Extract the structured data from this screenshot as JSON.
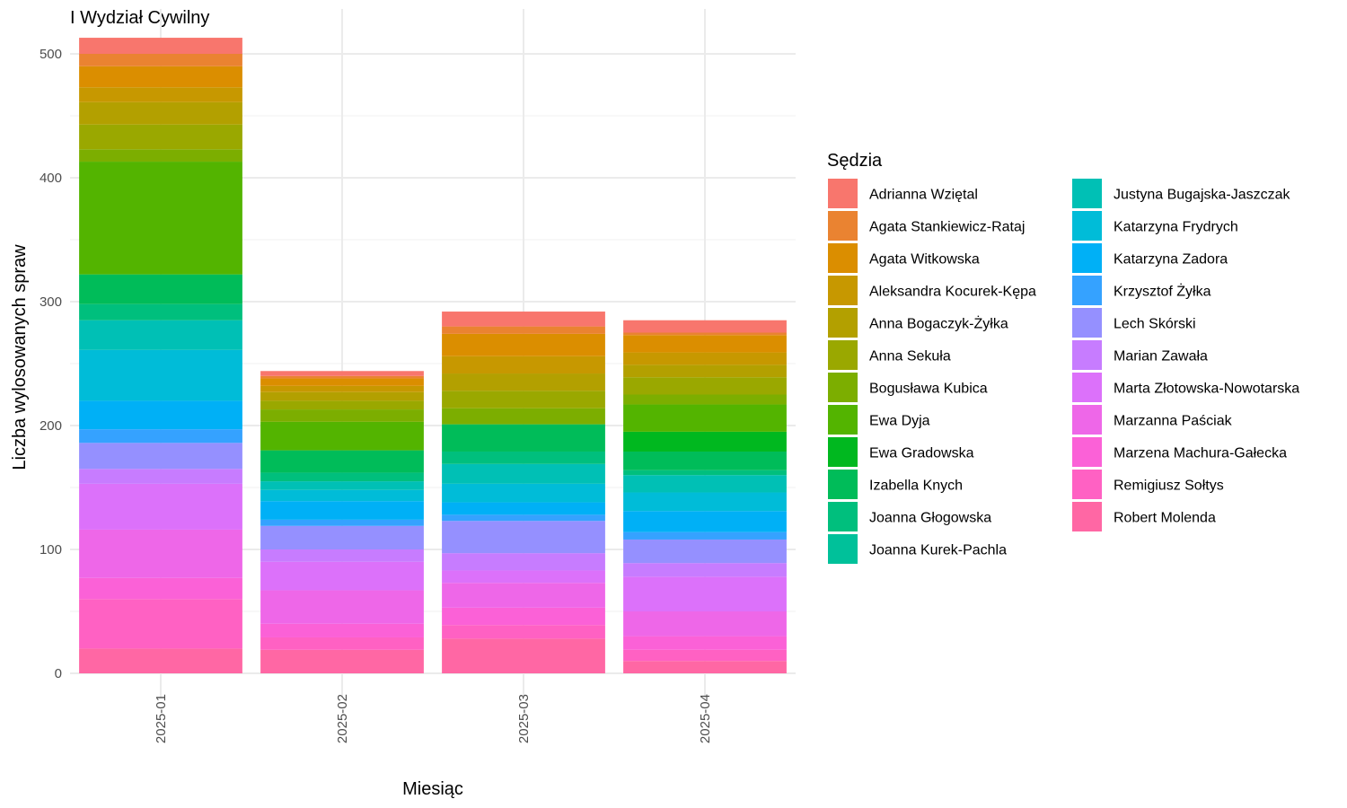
{
  "chart_data": {
    "type": "bar",
    "stacked": true,
    "title": "I Wydział Cywilny",
    "xlabel": "Miesiąc",
    "ylabel": "Liczba wylosowanych spraw",
    "categories": [
      "2025-01",
      "2025-02",
      "2025-03",
      "2025-04"
    ],
    "ylim": [
      -20,
      520
    ],
    "yticks": [
      0,
      100,
      200,
      300,
      400,
      500
    ],
    "grid": true,
    "legend": {
      "title": "Sędzia",
      "position": "right",
      "columns": 2
    },
    "series": [
      {
        "name": "Adrianna Wziętal",
        "color": "#F8766D",
        "values": [
          13,
          4,
          12,
          10
        ]
      },
      {
        "name": "Agata Stankiewicz-Rataj",
        "color": "#EA8331",
        "values": [
          10,
          2,
          6,
          2
        ]
      },
      {
        "name": "Agata Witkowska",
        "color": "#DB8E00",
        "values": [
          17,
          6,
          18,
          14
        ]
      },
      {
        "name": "Aleksandra Kocurek-Kępa",
        "color": "#C79800",
        "values": [
          12,
          5,
          14,
          10
        ]
      },
      {
        "name": "Anna Bogaczyk-Żyłka",
        "color": "#B3A000",
        "values": [
          18,
          7,
          14,
          10
        ]
      },
      {
        "name": "Anna Sekuła",
        "color": "#9AA800",
        "values": [
          20,
          7,
          14,
          14
        ]
      },
      {
        "name": "Bogusława Kubica",
        "color": "#7CAE00",
        "values": [
          10,
          10,
          13,
          8
        ]
      },
      {
        "name": "Ewa Dyja",
        "color": "#53B400",
        "values": [
          91,
          23,
          0,
          22
        ]
      },
      {
        "name": "Ewa Gradowska",
        "color": "#00B81F",
        "values": [
          0,
          0,
          0,
          16
        ]
      },
      {
        "name": "Izabella Knych",
        "color": "#00BC59",
        "values": [
          24,
          18,
          22,
          15
        ]
      },
      {
        "name": "Joanna Głogowska",
        "color": "#00BF7D",
        "values": [
          13,
          7,
          10,
          4
        ]
      },
      {
        "name": "Joanna Kurek-Pachla",
        "color": "#00C19A",
        "values": [
          0,
          0,
          0,
          0
        ]
      },
      {
        "name": "Justyna Bugajska-Jaszczak",
        "color": "#00C0B5",
        "values": [
          24,
          7,
          16,
          14
        ]
      },
      {
        "name": "Katarzyna Frydrych",
        "color": "#00BCD8",
        "values": [
          41,
          9,
          15,
          15
        ]
      },
      {
        "name": "Katarzyna Zadora",
        "color": "#00B0F6",
        "values": [
          23,
          15,
          10,
          17
        ]
      },
      {
        "name": "Krzysztof Żyłka",
        "color": "#35A2FF",
        "values": [
          11,
          5,
          5,
          6
        ]
      },
      {
        "name": "Lech Skórski",
        "color": "#9590FF",
        "values": [
          21,
          19,
          26,
          19
        ]
      },
      {
        "name": "Marian Zawała",
        "color": "#C77CFF",
        "values": [
          12,
          10,
          14,
          11
        ]
      },
      {
        "name": "Marta Złotowska-Nowotarska",
        "color": "#DC71FA",
        "values": [
          37,
          23,
          10,
          28
        ]
      },
      {
        "name": "Marzanna Paściak",
        "color": "#EE67E8",
        "values": [
          39,
          27,
          20,
          20
        ]
      },
      {
        "name": "Marzena Machura-Gałecka",
        "color": "#FB61D7",
        "values": [
          17,
          11,
          14,
          11
        ]
      },
      {
        "name": "Remigiusz Sołtys",
        "color": "#FF61C3",
        "values": [
          40,
          10,
          11,
          9
        ]
      },
      {
        "name": "Robert Molenda",
        "color": "#FF67A4",
        "values": [
          20,
          19,
          28,
          10
        ]
      }
    ]
  }
}
